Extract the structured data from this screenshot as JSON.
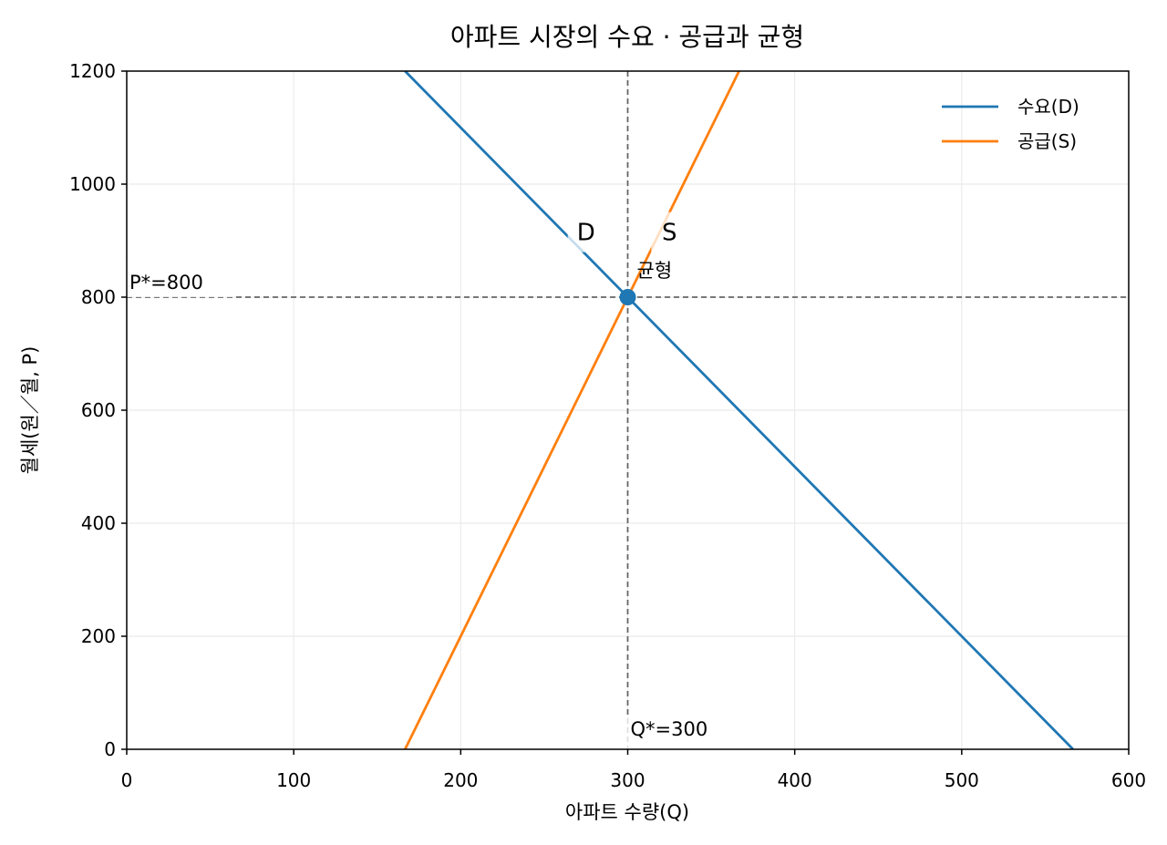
{
  "chart_data": {
    "type": "line",
    "title": "아파트 시장의 수요 · 공급과 균형",
    "xlabel": "아파트 수량(Q)",
    "ylabel": "월세(원／월, P)",
    "xlim": [
      0,
      600
    ],
    "ylim": [
      0,
      1200
    ],
    "xticks": [
      0,
      100,
      200,
      300,
      400,
      500,
      600
    ],
    "yticks": [
      0,
      200,
      400,
      600,
      800,
      1000,
      1200
    ],
    "grid": true,
    "legend_position": "top-right",
    "series": [
      {
        "name": "수요(D)",
        "color": "#1f77b4",
        "points": [
          [
            166.67,
            1200
          ],
          [
            566.67,
            0
          ]
        ]
      },
      {
        "name": "공급(S)",
        "color": "#ff7f0e",
        "points": [
          [
            166.67,
            0
          ],
          [
            366.67,
            1200
          ]
        ]
      }
    ],
    "curve_labels": [
      {
        "text": "D",
        "x": 275,
        "y": 915
      },
      {
        "text": "S",
        "x": 325,
        "y": 915
      }
    ],
    "equilibrium": {
      "q": 300,
      "p": 800,
      "label": "균형",
      "p_label": "P*=800",
      "q_label": "Q*=300"
    }
  }
}
